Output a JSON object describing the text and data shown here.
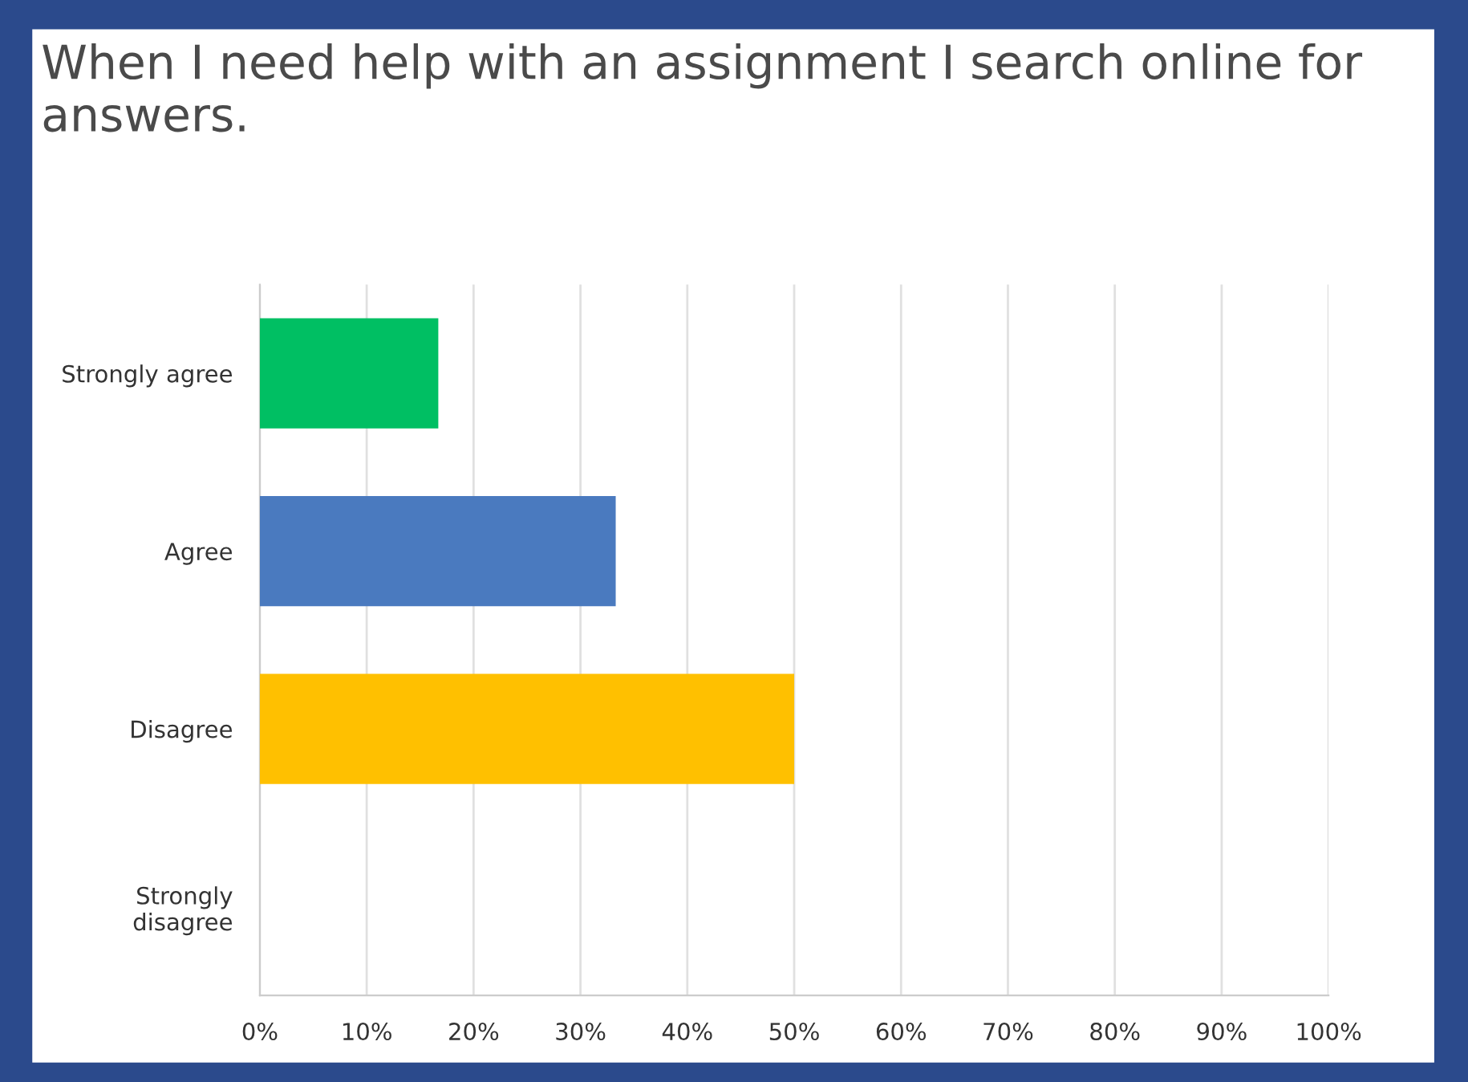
{
  "chart_data": {
    "type": "bar",
    "orientation": "horizontal",
    "title": "When I need help with an assignment I search online for answers.",
    "categories": [
      "Strongly agree",
      "Agree",
      "Disagree",
      "Strongly\ndisagree"
    ],
    "values": [
      16.7,
      33.3,
      50,
      0
    ],
    "colors": [
      "#00bf63",
      "#4a7abf",
      "#ffc000",
      "#cccccc"
    ],
    "xlim": [
      0,
      100
    ],
    "xticks": [
      {
        "value": 0,
        "label": "0%"
      },
      {
        "value": 10,
        "label": "10%"
      },
      {
        "value": 20,
        "label": "20%"
      },
      {
        "value": 30,
        "label": "30%"
      },
      {
        "value": 40,
        "label": "40%"
      },
      {
        "value": 50,
        "label": "50%"
      },
      {
        "value": 60,
        "label": "60%"
      },
      {
        "value": 70,
        "label": "70%"
      },
      {
        "value": 80,
        "label": "80%"
      },
      {
        "value": 90,
        "label": "90%"
      },
      {
        "value": 100,
        "label": "100%"
      }
    ],
    "grid": "x"
  }
}
